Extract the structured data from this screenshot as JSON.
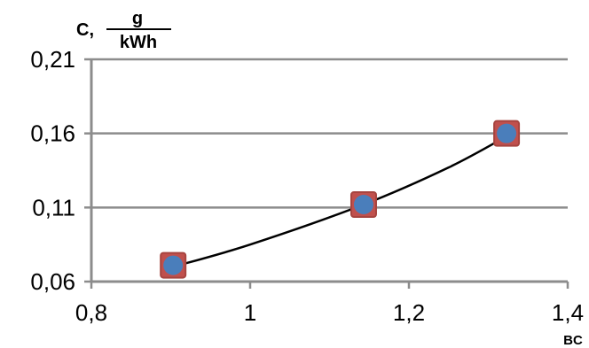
{
  "chart_data": {
    "type": "scatter",
    "ylabel": "C,",
    "ylabel_unit_numerator": "g",
    "ylabel_unit_denominator": "kWh",
    "xlabel": "BC",
    "xlim": [
      0.8,
      1.4
    ],
    "ylim": [
      0.06,
      0.21
    ],
    "x_ticks": [
      0.8,
      1.0,
      1.2,
      1.4
    ],
    "x_tick_labels": [
      "0,8",
      "1",
      "1,2",
      "1,4"
    ],
    "y_ticks": [
      0.06,
      0.11,
      0.16,
      0.21
    ],
    "y_tick_labels": [
      "0,06",
      "0,11",
      "0,16",
      "0,21"
    ],
    "grid": "horizontal",
    "series": [
      {
        "marker": "square",
        "color": "#c0504d",
        "border": "#a6443f",
        "points": [
          [
            0.903,
            0.071
          ],
          [
            1.143,
            0.112
          ],
          [
            1.323,
            0.16
          ]
        ]
      },
      {
        "marker": "circle",
        "color": "#4a7ebb",
        "points": [
          [
            0.903,
            0.071
          ],
          [
            1.143,
            0.112
          ],
          [
            1.323,
            0.16
          ]
        ]
      }
    ],
    "trendline": {
      "color": "#000000",
      "type": "polynomial",
      "points": [
        [
          0.903,
          0.07
        ],
        [
          1.0,
          0.085
        ],
        [
          1.143,
          0.112
        ],
        [
          1.25,
          0.137
        ],
        [
          1.323,
          0.158
        ]
      ]
    }
  }
}
